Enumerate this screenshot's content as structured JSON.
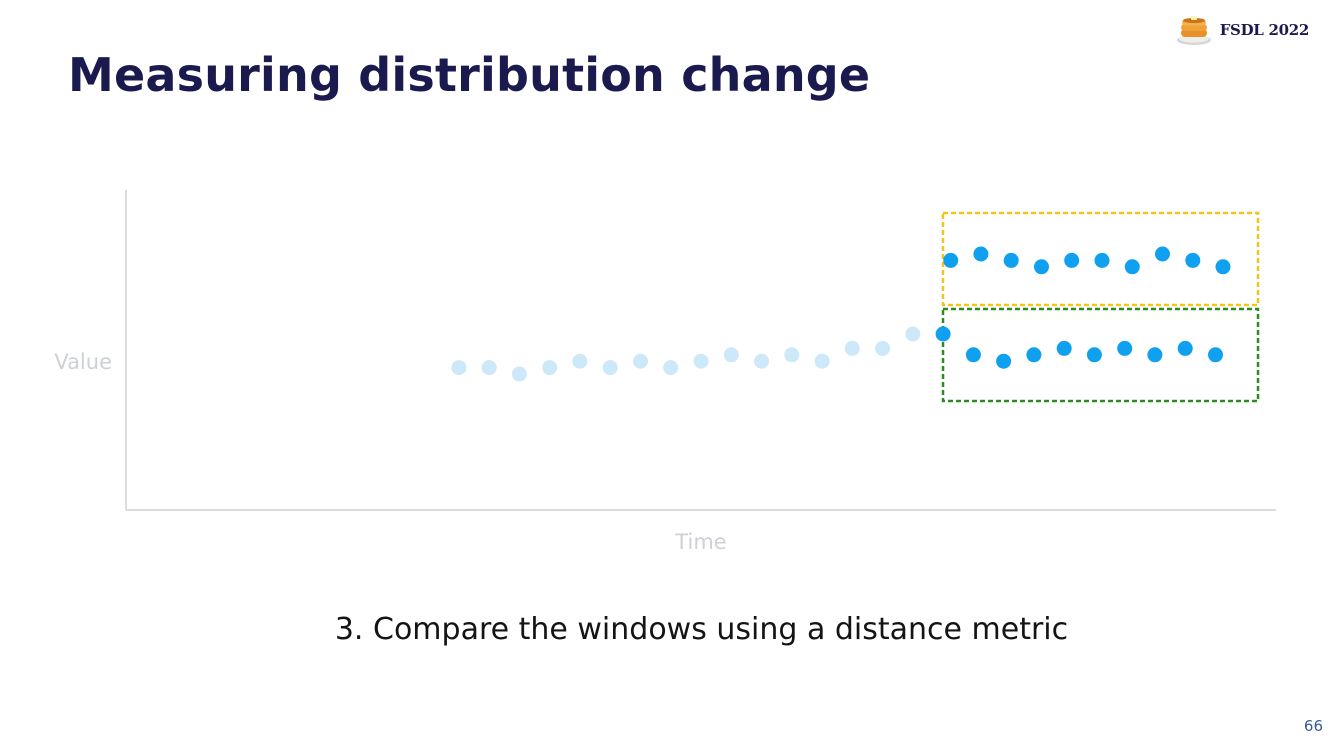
{
  "slide": {
    "title": "Measuring distribution change",
    "brand": "FSDL 2022",
    "caption": "3. Compare the windows using a distance metric",
    "page_number": "66"
  },
  "icons": {
    "brand_icon": "pancakes-icon"
  },
  "colors": {
    "title": "#1b1a4e",
    "reference_points": "#cde8f9",
    "window_points": "#10a0f0",
    "reference_window_box": "#2e8b22",
    "current_window_box": "#f2c417",
    "axis": "#cdd0d6"
  },
  "chart_data": {
    "type": "scatter",
    "xlabel": "Time",
    "ylabel": "Value",
    "xlim": [
      0,
      38
    ],
    "ylim": [
      0,
      100
    ],
    "grid": false,
    "legend": "none",
    "series": [
      {
        "values": [
          [
            11,
            44.5
          ],
          [
            12,
            44.5
          ],
          [
            13,
            42.5
          ],
          [
            14,
            44.5
          ],
          [
            15,
            46.5
          ],
          [
            16,
            44.5
          ],
          [
            17,
            46.5
          ],
          [
            18,
            44.5
          ],
          [
            19,
            46.5
          ],
          [
            20,
            48.5
          ],
          [
            21,
            46.5
          ],
          [
            22,
            48.5
          ],
          [
            23,
            46.5
          ],
          [
            24,
            50.5
          ],
          [
            25,
            50.5
          ],
          [
            26,
            55
          ]
        ]
      },
      {
        "values": [
          [
            27,
            55
          ],
          [
            28,
            48.5
          ],
          [
            29,
            46.5
          ],
          [
            30,
            48.5
          ],
          [
            31,
            50.5
          ],
          [
            32,
            48.5
          ],
          [
            33,
            50.5
          ],
          [
            34,
            48.5
          ],
          [
            35,
            50.5
          ],
          [
            36,
            48.5
          ]
        ]
      },
      {
        "values": [
          [
            27.25,
            78
          ],
          [
            28.25,
            80
          ],
          [
            29.25,
            78
          ],
          [
            30.25,
            76
          ],
          [
            31.25,
            78
          ],
          [
            32.25,
            78
          ],
          [
            33.25,
            76
          ],
          [
            34.25,
            80
          ],
          [
            35.25,
            78
          ],
          [
            36.25,
            76
          ]
        ]
      }
    ]
  }
}
